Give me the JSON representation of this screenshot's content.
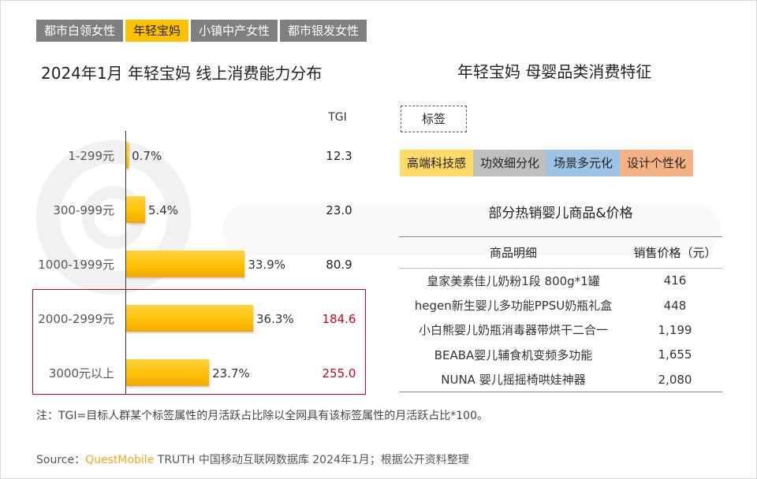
{
  "tabs": [
    {
      "label": "都市白领女性",
      "active": false
    },
    {
      "label": "年轻宝妈",
      "active": true
    },
    {
      "label": "小镇中产女性",
      "active": false
    },
    {
      "label": "都市银发女性",
      "active": false
    }
  ],
  "left_title": "2024年1月 年轻宝妈 线上消费能力分布",
  "right_title": "年轻宝妈 母婴品类消费特征",
  "chart_data": {
    "type": "bar",
    "orientation": "horizontal",
    "title": "2024年1月 年轻宝妈 线上消费能力分布",
    "categories": [
      "1-299元",
      "300-999元",
      "1000-1999元",
      "2000-2999元",
      "3000元以上"
    ],
    "values": [
      0.7,
      5.4,
      33.9,
      36.3,
      23.7
    ],
    "value_labels": [
      "0.7%",
      "5.4%",
      "33.9%",
      "36.3%",
      "23.7%"
    ],
    "xlim": [
      0,
      36.3
    ],
    "tgi_header": "TGI",
    "tgi": [
      "12.3",
      "23.0",
      "80.9",
      "184.6",
      "255.0"
    ],
    "tgi_highlight": [
      false,
      false,
      false,
      true,
      true
    ],
    "bar_color": "#ffc000",
    "highlight_color": "#d0021b",
    "grid": false
  },
  "tag_label": "标签",
  "tags": [
    {
      "label": "高端科技感",
      "color": "#ffd966"
    },
    {
      "label": "功效细分化",
      "color": "#bfbfbf"
    },
    {
      "label": "场景多元化",
      "color": "#9dc3e6"
    },
    {
      "label": "设计个性化",
      "color": "#f4b183"
    }
  ],
  "table": {
    "title": "部分热销婴儿商品&价格",
    "headers": [
      "商品明细",
      "销售价格（元）"
    ],
    "rows": [
      [
        "皇家美素佳儿奶粉1段 800g*1罐",
        "416"
      ],
      [
        "hegen新生婴儿多功能PPSU奶瓶礼盒",
        "448"
      ],
      [
        "小白熊婴儿奶瓶消毒器带烘干二合一",
        "1,199"
      ],
      [
        "BEABA婴儿辅食机变频多功能",
        "1,655"
      ],
      [
        "NUNA 婴儿摇摇椅哄娃神器",
        "2,080"
      ]
    ]
  },
  "note": "注：TGI=目标人群某个标签属性的月活跃占比除以全网具有该标签属性的月活跃占比*100。",
  "source": {
    "prefix": "Source：",
    "brand": "QuestMobile",
    "text": " TRUTH 中国移动互联网数据库 2024年1月；根据公开资料整理"
  }
}
